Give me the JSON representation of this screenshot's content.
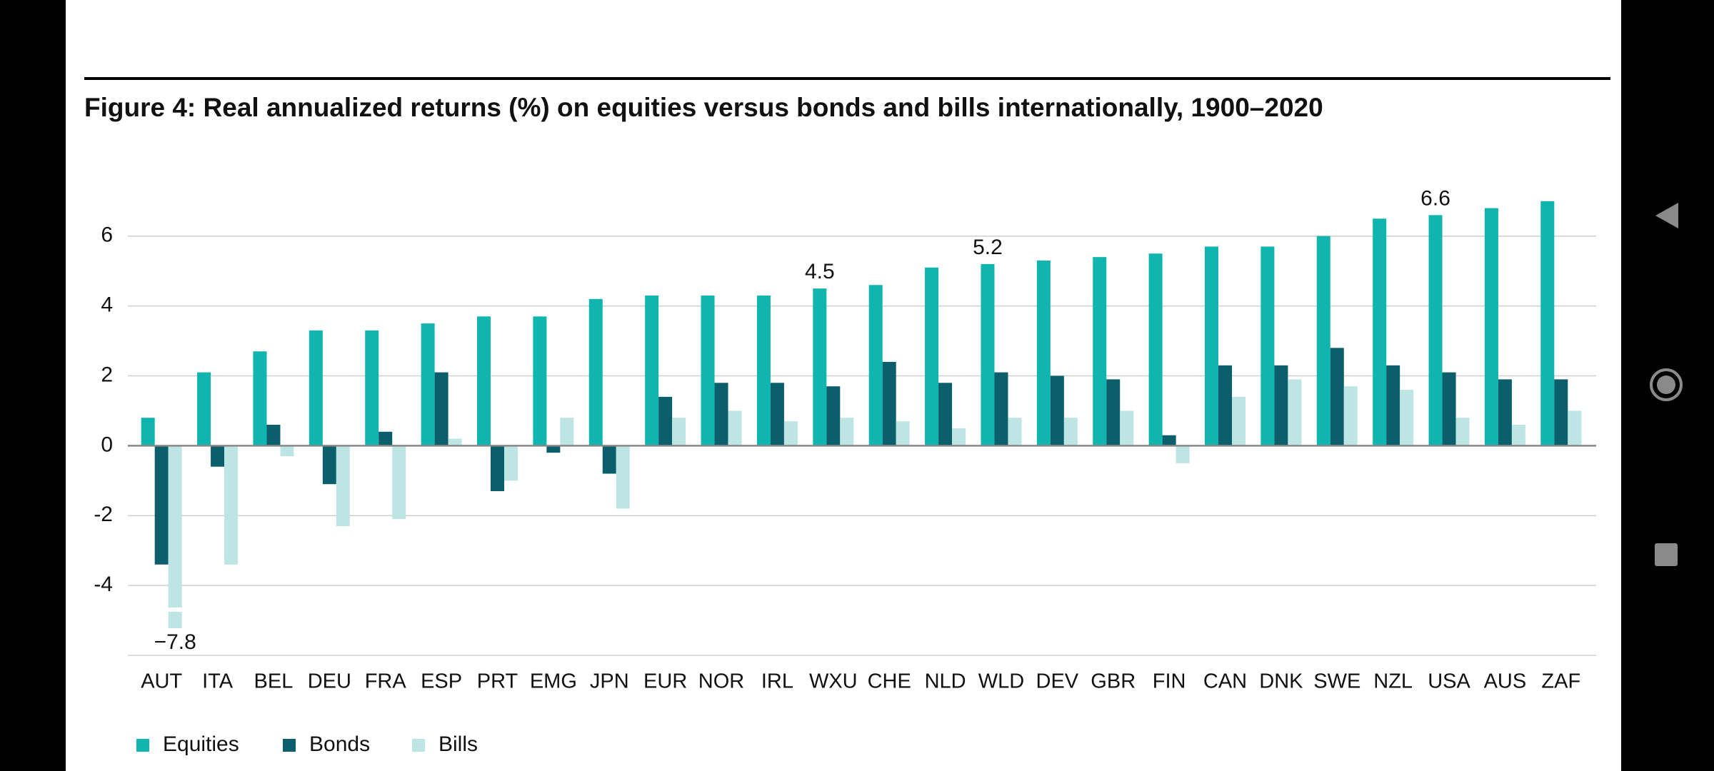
{
  "chart_data": {
    "type": "bar",
    "title": "Figure 4: Real annualized returns (%) on equities versus bonds and bills internationally, 1900–2020",
    "categories": [
      "AUT",
      "ITA",
      "BEL",
      "DEU",
      "FRA",
      "ESP",
      "PRT",
      "EMG",
      "JPN",
      "EUR",
      "NOR",
      "IRL",
      "WXU",
      "CHE",
      "NLD",
      "WLD",
      "DEV",
      "GBR",
      "FIN",
      "CAN",
      "DNK",
      "SWE",
      "NZL",
      "USA",
      "AUS",
      "ZAF"
    ],
    "series": [
      {
        "name": "Equities",
        "color": "#0fb5ae",
        "values": [
          0.8,
          2.1,
          2.7,
          3.3,
          3.3,
          3.5,
          3.7,
          3.7,
          4.2,
          4.3,
          4.3,
          4.3,
          4.5,
          4.6,
          5.1,
          5.2,
          5.3,
          5.4,
          5.5,
          5.7,
          5.7,
          6.0,
          6.5,
          6.6,
          6.8,
          7.0
        ],
        "value_labels": [
          null,
          null,
          null,
          null,
          null,
          null,
          null,
          null,
          null,
          null,
          null,
          null,
          "4.5",
          null,
          null,
          "5.2",
          null,
          null,
          null,
          null,
          null,
          null,
          null,
          "6.6",
          null,
          null
        ]
      },
      {
        "name": "Bonds",
        "color": "#0b5e6b",
        "values": [
          -3.4,
          -0.6,
          0.6,
          -1.1,
          0.4,
          2.1,
          -1.3,
          -0.2,
          -0.8,
          1.4,
          1.8,
          1.8,
          1.7,
          2.4,
          1.8,
          2.1,
          2.0,
          1.9,
          0.3,
          2.3,
          2.3,
          2.8,
          2.3,
          2.1,
          1.9,
          1.9
        ]
      },
      {
        "name": "Bills",
        "color": "#bde5e3",
        "values": [
          -7.8,
          -3.4,
          -0.3,
          -2.3,
          -2.1,
          0.2,
          -1.0,
          0.8,
          -1.8,
          0.8,
          1.0,
          0.7,
          0.8,
          0.7,
          0.5,
          0.8,
          0.8,
          1.0,
          -0.5,
          1.4,
          1.9,
          1.7,
          1.6,
          0.8,
          0.6,
          1.0
        ],
        "value_labels": [
          "−7.8",
          null,
          null,
          null,
          null,
          null,
          null,
          null,
          null,
          null,
          null,
          null,
          null,
          null,
          null,
          null,
          null,
          null,
          null,
          null,
          null,
          null,
          null,
          null,
          null,
          null
        ]
      }
    ],
    "ylim": [
      -6,
      7.2
    ],
    "yticks": [
      -4,
      -2,
      0,
      2,
      4,
      6
    ],
    "grid": true,
    "legend": "bottom"
  }
}
